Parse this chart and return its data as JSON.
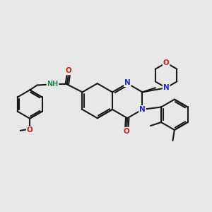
{
  "bg_color": "#e8e8e8",
  "bond_color": "#1a1a1a",
  "N_color": "#2525cc",
  "O_color": "#cc2020",
  "H_color": "#2e8b57",
  "line_width": 1.5,
  "figsize": [
    3.0,
    3.0
  ],
  "dpi": 100,
  "xlim": [
    -2.5,
    9.5
  ],
  "ylim": [
    -4.5,
    4.5
  ]
}
